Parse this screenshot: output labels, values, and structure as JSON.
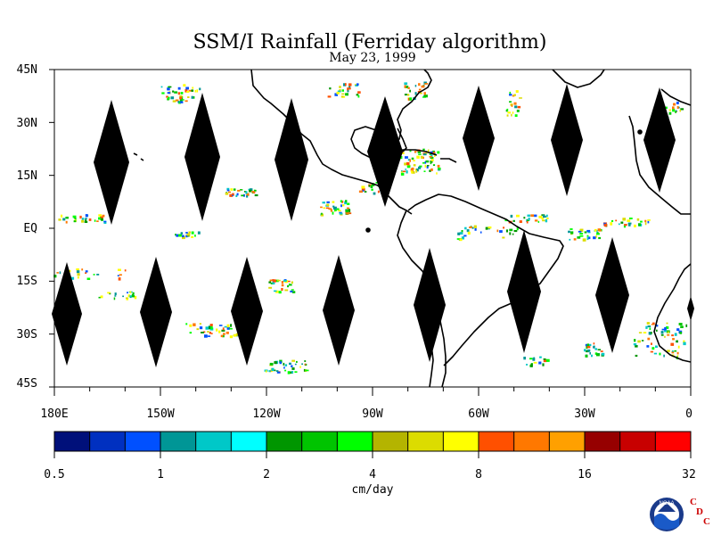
{
  "title": "SSM/I Rainfall (Ferriday algorithm)",
  "date": "May 23, 1999",
  "map": {
    "lat_labels": [
      "45N",
      "30N",
      "15N",
      "EQ",
      "15S",
      "30S",
      "45S"
    ],
    "lon_labels": [
      "180E",
      "150W",
      "120W",
      "90W",
      "60W",
      "30W",
      "0"
    ],
    "background": "#ffffff",
    "land_outline_color": "#000000",
    "swath_gap_color": "#000000"
  },
  "colorbar": {
    "unit": "cm/day",
    "tick_labels": [
      "0.5",
      "1",
      "2",
      "4",
      "8",
      "16",
      "32"
    ],
    "colors": [
      "#00107a",
      "#0030c0",
      "#0050ff",
      "#009696",
      "#00c8c8",
      "#00ffff",
      "#009600",
      "#00c400",
      "#00ff00",
      "#b4b400",
      "#dcdc00",
      "#ffff00",
      "#ff5000",
      "#ff7800",
      "#ffa000",
      "#960000",
      "#c80000",
      "#ff0000"
    ]
  },
  "logo": {
    "noaa_text": "NOAA",
    "cdc_letters": [
      "C",
      "D",
      "C"
    ],
    "cdc_color": "#cc0000"
  }
}
